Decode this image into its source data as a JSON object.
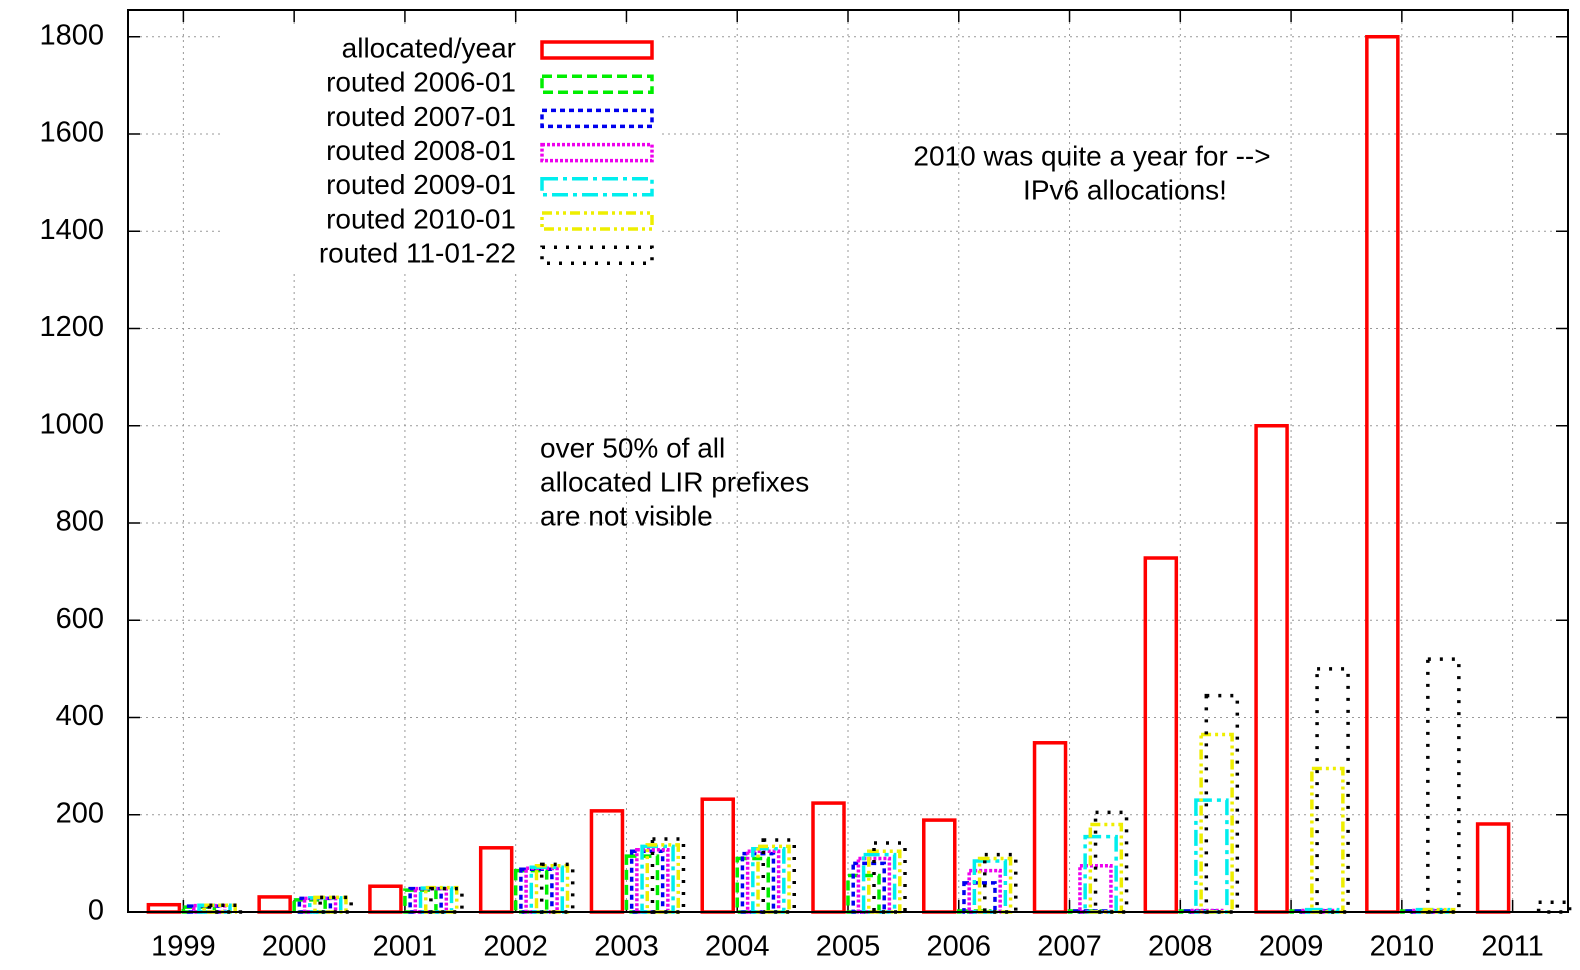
{
  "chart_data": {
    "type": "bar",
    "categories": [
      "1999",
      "2000",
      "2001",
      "2002",
      "2003",
      "2004",
      "2005",
      "2006",
      "2007",
      "2008",
      "2009",
      "2010",
      "2011"
    ],
    "series": [
      {
        "name": "allocated/year",
        "color": "#ff0000",
        "values": [
          15,
          31,
          53,
          132,
          208,
          232,
          224,
          189,
          348,
          728,
          1000,
          1800,
          181
        ]
      },
      {
        "name": "routed 2006-01",
        "color": "#00ee00",
        "values": [
          10,
          25,
          45,
          85,
          115,
          110,
          75,
          2,
          2,
          2,
          2,
          2,
          0
        ]
      },
      {
        "name": "routed 2007-01",
        "color": "#0000ee",
        "values": [
          12,
          28,
          48,
          88,
          125,
          120,
          100,
          60,
          2,
          2,
          2,
          2,
          0
        ]
      },
      {
        "name": "routed 2008-01",
        "color": "#ee00ee",
        "values": [
          13,
          28,
          48,
          90,
          128,
          125,
          110,
          85,
          95,
          3,
          3,
          3,
          0
        ]
      },
      {
        "name": "routed 2009-01",
        "color": "#00eeee",
        "values": [
          14,
          29,
          49,
          92,
          135,
          130,
          118,
          105,
          155,
          230,
          5,
          5,
          0
        ]
      },
      {
        "name": "routed 2010-01",
        "color": "#eeee00",
        "values": [
          14,
          30,
          50,
          95,
          138,
          135,
          125,
          110,
          180,
          365,
          295,
          5,
          0
        ]
      },
      {
        "name": "routed 11-01-22",
        "color": "#000000",
        "values": [
          14,
          30,
          48,
          98,
          150,
          148,
          142,
          118,
          205,
          445,
          500,
          520,
          20
        ]
      }
    ],
    "ylim": [
      0,
      1855
    ],
    "yticks": [
      0,
      200,
      400,
      600,
      800,
      1000,
      1200,
      1400,
      1600,
      1800
    ],
    "grid": true,
    "legend": "top-left",
    "annotations": [
      {
        "text": [
          "2010 was quite a year for -->",
          "IPv6 allocations!"
        ]
      },
      {
        "text": [
          "over 50% of all",
          "allocated LIR prefixes",
          "are not visible"
        ]
      }
    ]
  }
}
